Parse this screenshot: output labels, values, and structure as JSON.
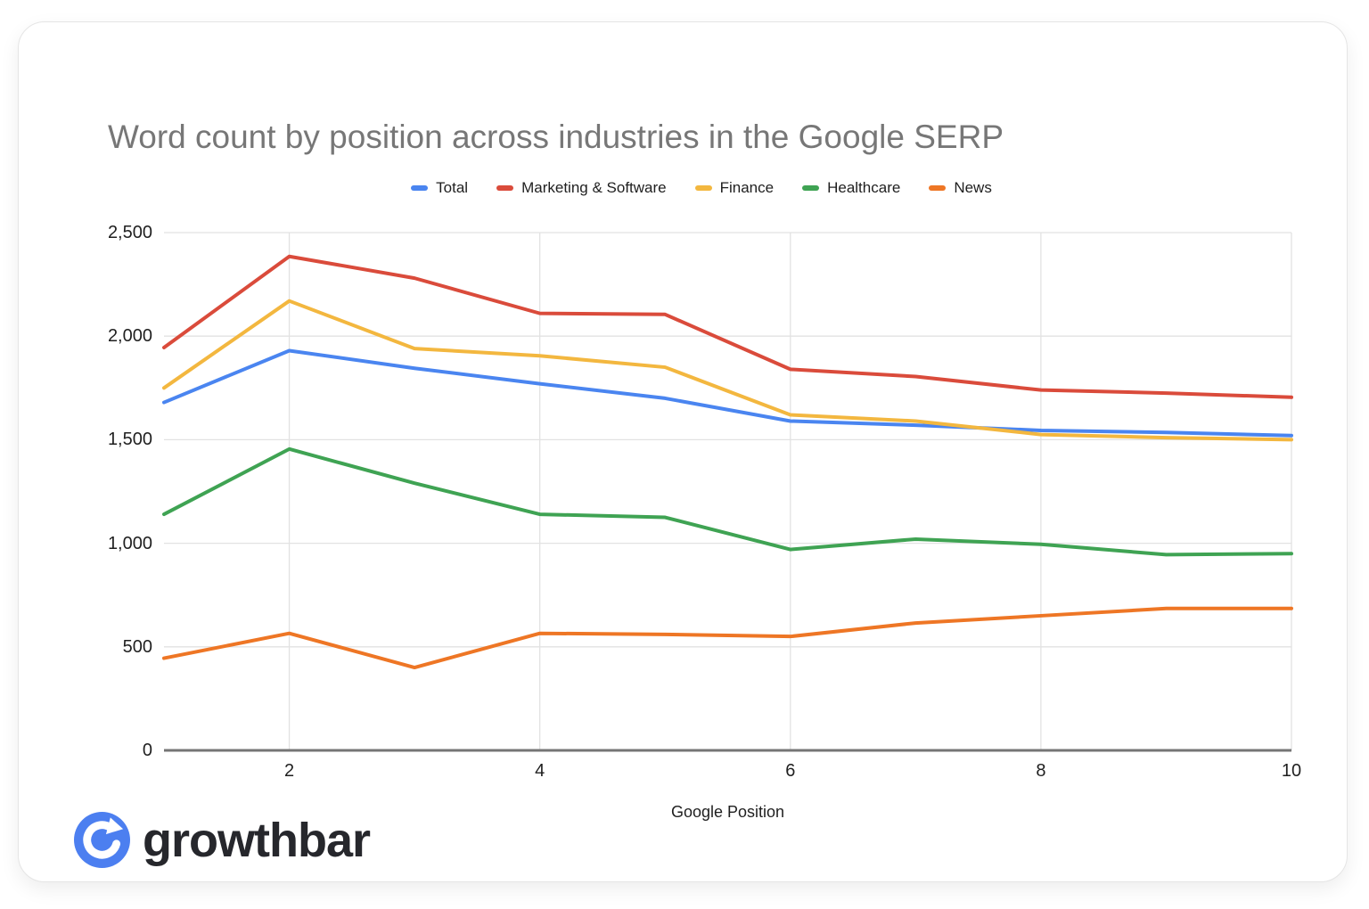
{
  "chart_data": {
    "type": "line",
    "title": "Word count by position across industries in the Google SERP",
    "xlabel": "Google Position",
    "x": [
      1,
      2,
      3,
      4,
      5,
      6,
      7,
      8,
      9,
      10
    ],
    "x_ticks": [
      2,
      4,
      6,
      8,
      10
    ],
    "ylim": [
      0,
      2500
    ],
    "y_ticks": [
      "0",
      "500",
      "1,000",
      "1,500",
      "2,000",
      "2,500"
    ],
    "y_tick_values": [
      0,
      500,
      1000,
      1500,
      2000,
      2500
    ],
    "grid": true,
    "legend_position": "top",
    "series": [
      {
        "name": "Total",
        "color": "#4a85f0",
        "values": [
          1680,
          1930,
          1845,
          1770,
          1700,
          1590,
          1570,
          1545,
          1535,
          1520
        ]
      },
      {
        "name": "Marketing & Software",
        "color": "#da4b3b",
        "values": [
          1945,
          2385,
          2280,
          2110,
          2105,
          1840,
          1805,
          1740,
          1725,
          1705
        ]
      },
      {
        "name": "Finance",
        "color": "#f3b73f",
        "values": [
          1750,
          2170,
          1940,
          1905,
          1850,
          1620,
          1590,
          1525,
          1510,
          1500
        ]
      },
      {
        "name": "Healthcare",
        "color": "#3fa353",
        "values": [
          1140,
          1455,
          1290,
          1140,
          1125,
          970,
          1020,
          995,
          945,
          950
        ]
      },
      {
        "name": "News",
        "color": "#ee7625",
        "values": [
          445,
          565,
          400,
          565,
          560,
          550,
          615,
          650,
          685,
          685
        ]
      }
    ]
  },
  "style": {
    "grid_color": "#e2e2e2",
    "baseline_color": "#757575",
    "title_color": "#777777",
    "tick_color": "#1f1f1f",
    "line_width": 4
  },
  "branding": {
    "logo_text": "growthbar",
    "logo_icon": "circular-arrow-icon",
    "logo_circle_color": "#4c7ff0",
    "logo_text_color": "#26272c"
  }
}
